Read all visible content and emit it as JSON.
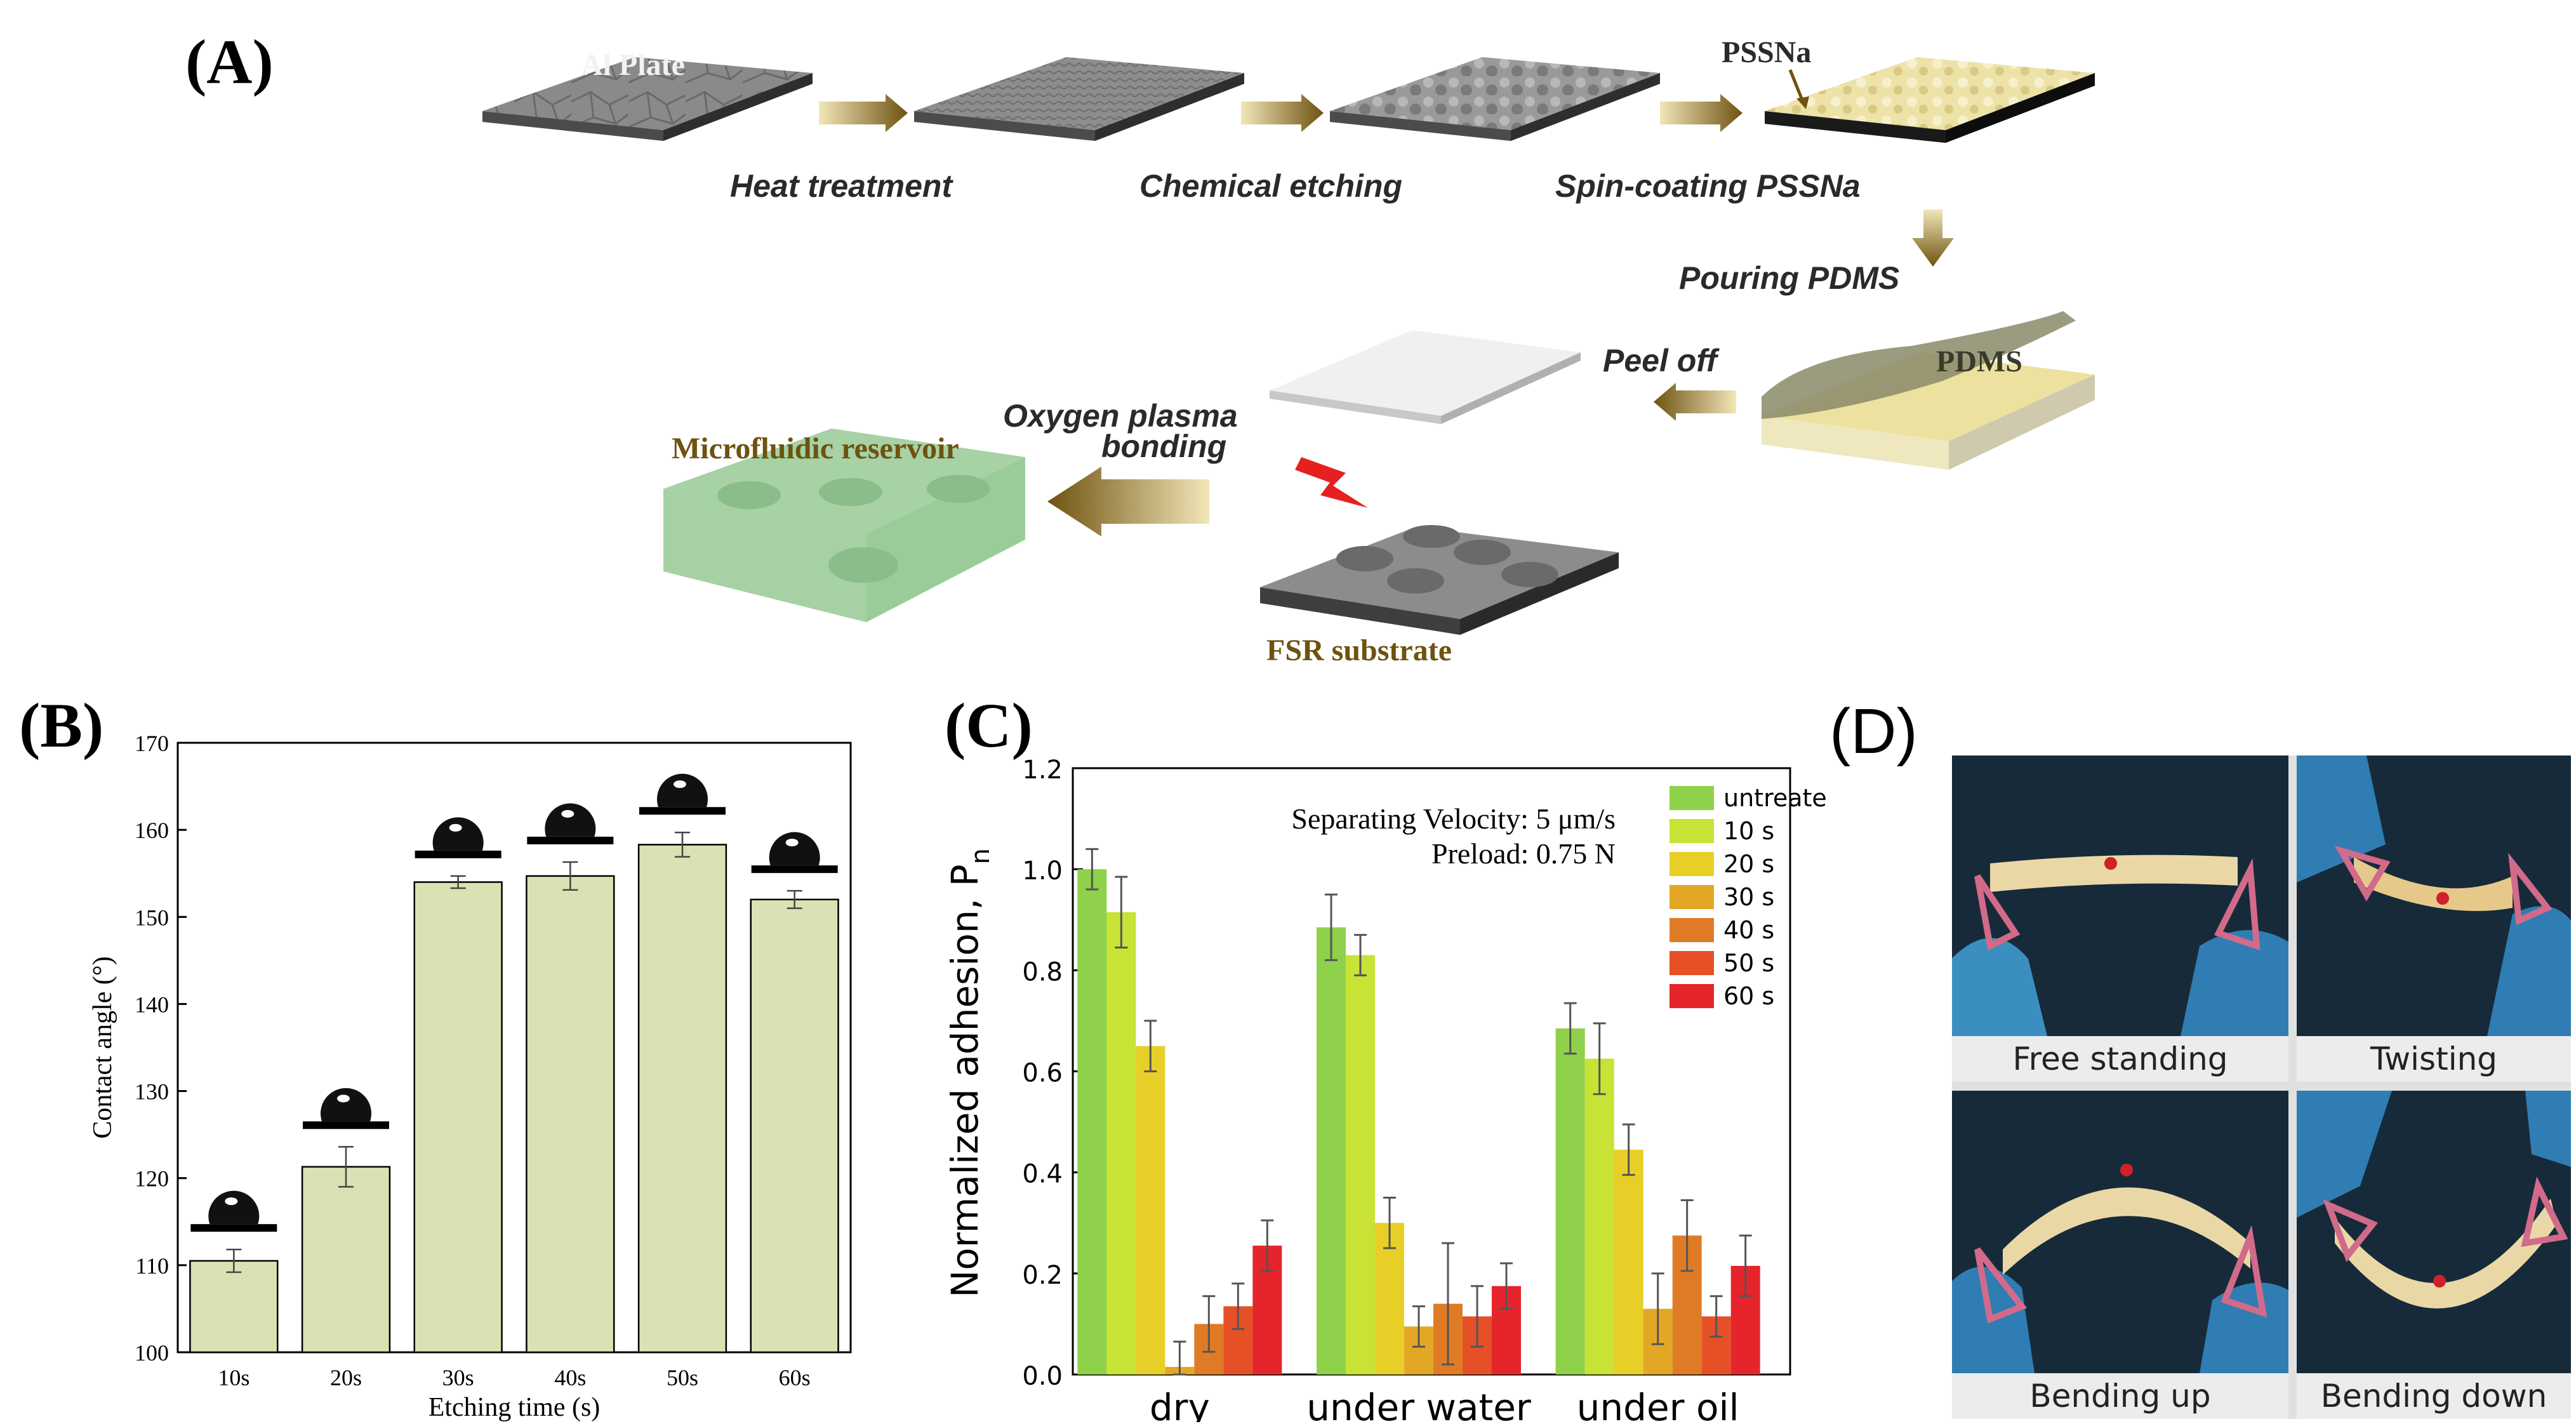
{
  "panel_labels": {
    "a": "(A)",
    "b": "(B)",
    "c": "(C)",
    "d": "(D)"
  },
  "panel_a": {
    "steps": {
      "heat": "Heat treatment",
      "etch": "Chemical etching",
      "spin": "Spin-coating PSSNa",
      "pour": "Pouring PDMS",
      "peel": "Peel off",
      "oxygen_line1": "Oxygen plasma",
      "oxygen_line2": "bonding"
    },
    "materials": {
      "al": "Al Plate",
      "pssna": "PSSNa",
      "pdms": "PDMS",
      "reservoir": "Microfluidic reservoir",
      "fsr": "FSR substrate"
    }
  },
  "chart_data": [
    {
      "id": "B",
      "type": "bar",
      "categories": [
        "10s",
        "20s",
        "30s",
        "40s",
        "50s",
        "60s"
      ],
      "values": [
        110.5,
        121.3,
        154.0,
        154.7,
        158.3,
        152.0
      ],
      "errors": [
        1.3,
        2.3,
        0.7,
        1.6,
        1.4,
        1.0
      ],
      "xlabel": "Etching time (s)",
      "ylabel": "Contact angle (°)",
      "ylim": [
        100,
        170
      ],
      "yticks": [
        100,
        110,
        120,
        130,
        140,
        150,
        160,
        170
      ],
      "bar_color": "#d9e2b2"
    },
    {
      "id": "C",
      "type": "bar",
      "categories": [
        "dry",
        "under water",
        "under oil"
      ],
      "series": [
        {
          "name": "untreated",
          "color": "#8fd14a",
          "values": [
            1.0,
            0.885,
            0.685
          ],
          "errors": [
            0.04,
            0.065,
            0.05
          ]
        },
        {
          "name": "10 s",
          "color": "#c8e235",
          "values": [
            0.915,
            0.83,
            0.625
          ],
          "errors": [
            0.07,
            0.04,
            0.07
          ]
        },
        {
          "name": "20 s",
          "color": "#e8cf28",
          "values": [
            0.65,
            0.3,
            0.445
          ],
          "errors": [
            0.05,
            0.05,
            0.05
          ]
        },
        {
          "name": "30 s",
          "color": "#e3a726",
          "values": [
            0.015,
            0.095,
            0.13
          ],
          "errors": [
            0.05,
            0.04,
            0.07
          ]
        },
        {
          "name": "40 s",
          "color": "#e07b25",
          "values": [
            0.1,
            0.14,
            0.275
          ],
          "errors": [
            0.055,
            0.12,
            0.07
          ]
        },
        {
          "name": "50 s",
          "color": "#e55027",
          "values": [
            0.135,
            0.115,
            0.115
          ],
          "errors": [
            0.045,
            0.06,
            0.04
          ]
        },
        {
          "name": "60 s",
          "color": "#e5252b",
          "values": [
            0.255,
            0.175,
            0.215
          ],
          "errors": [
            0.05,
            0.045,
            0.06
          ]
        }
      ],
      "ylabel": "Normalized adhesion, P",
      "ylabel_subscript": "n",
      "ylim": [
        0,
        1.2
      ],
      "yticks": [
        "0.0",
        "0.2",
        "0.4",
        "0.6",
        "0.8",
        "1.0",
        "1.2"
      ],
      "annotations": [
        "Separating Velocity: 5 μm/s",
        "Preload: 0.75 N"
      ]
    }
  ],
  "panel_d": {
    "captions": [
      "Free standing",
      "Twisting",
      "Bending  up",
      "Bending down"
    ]
  }
}
